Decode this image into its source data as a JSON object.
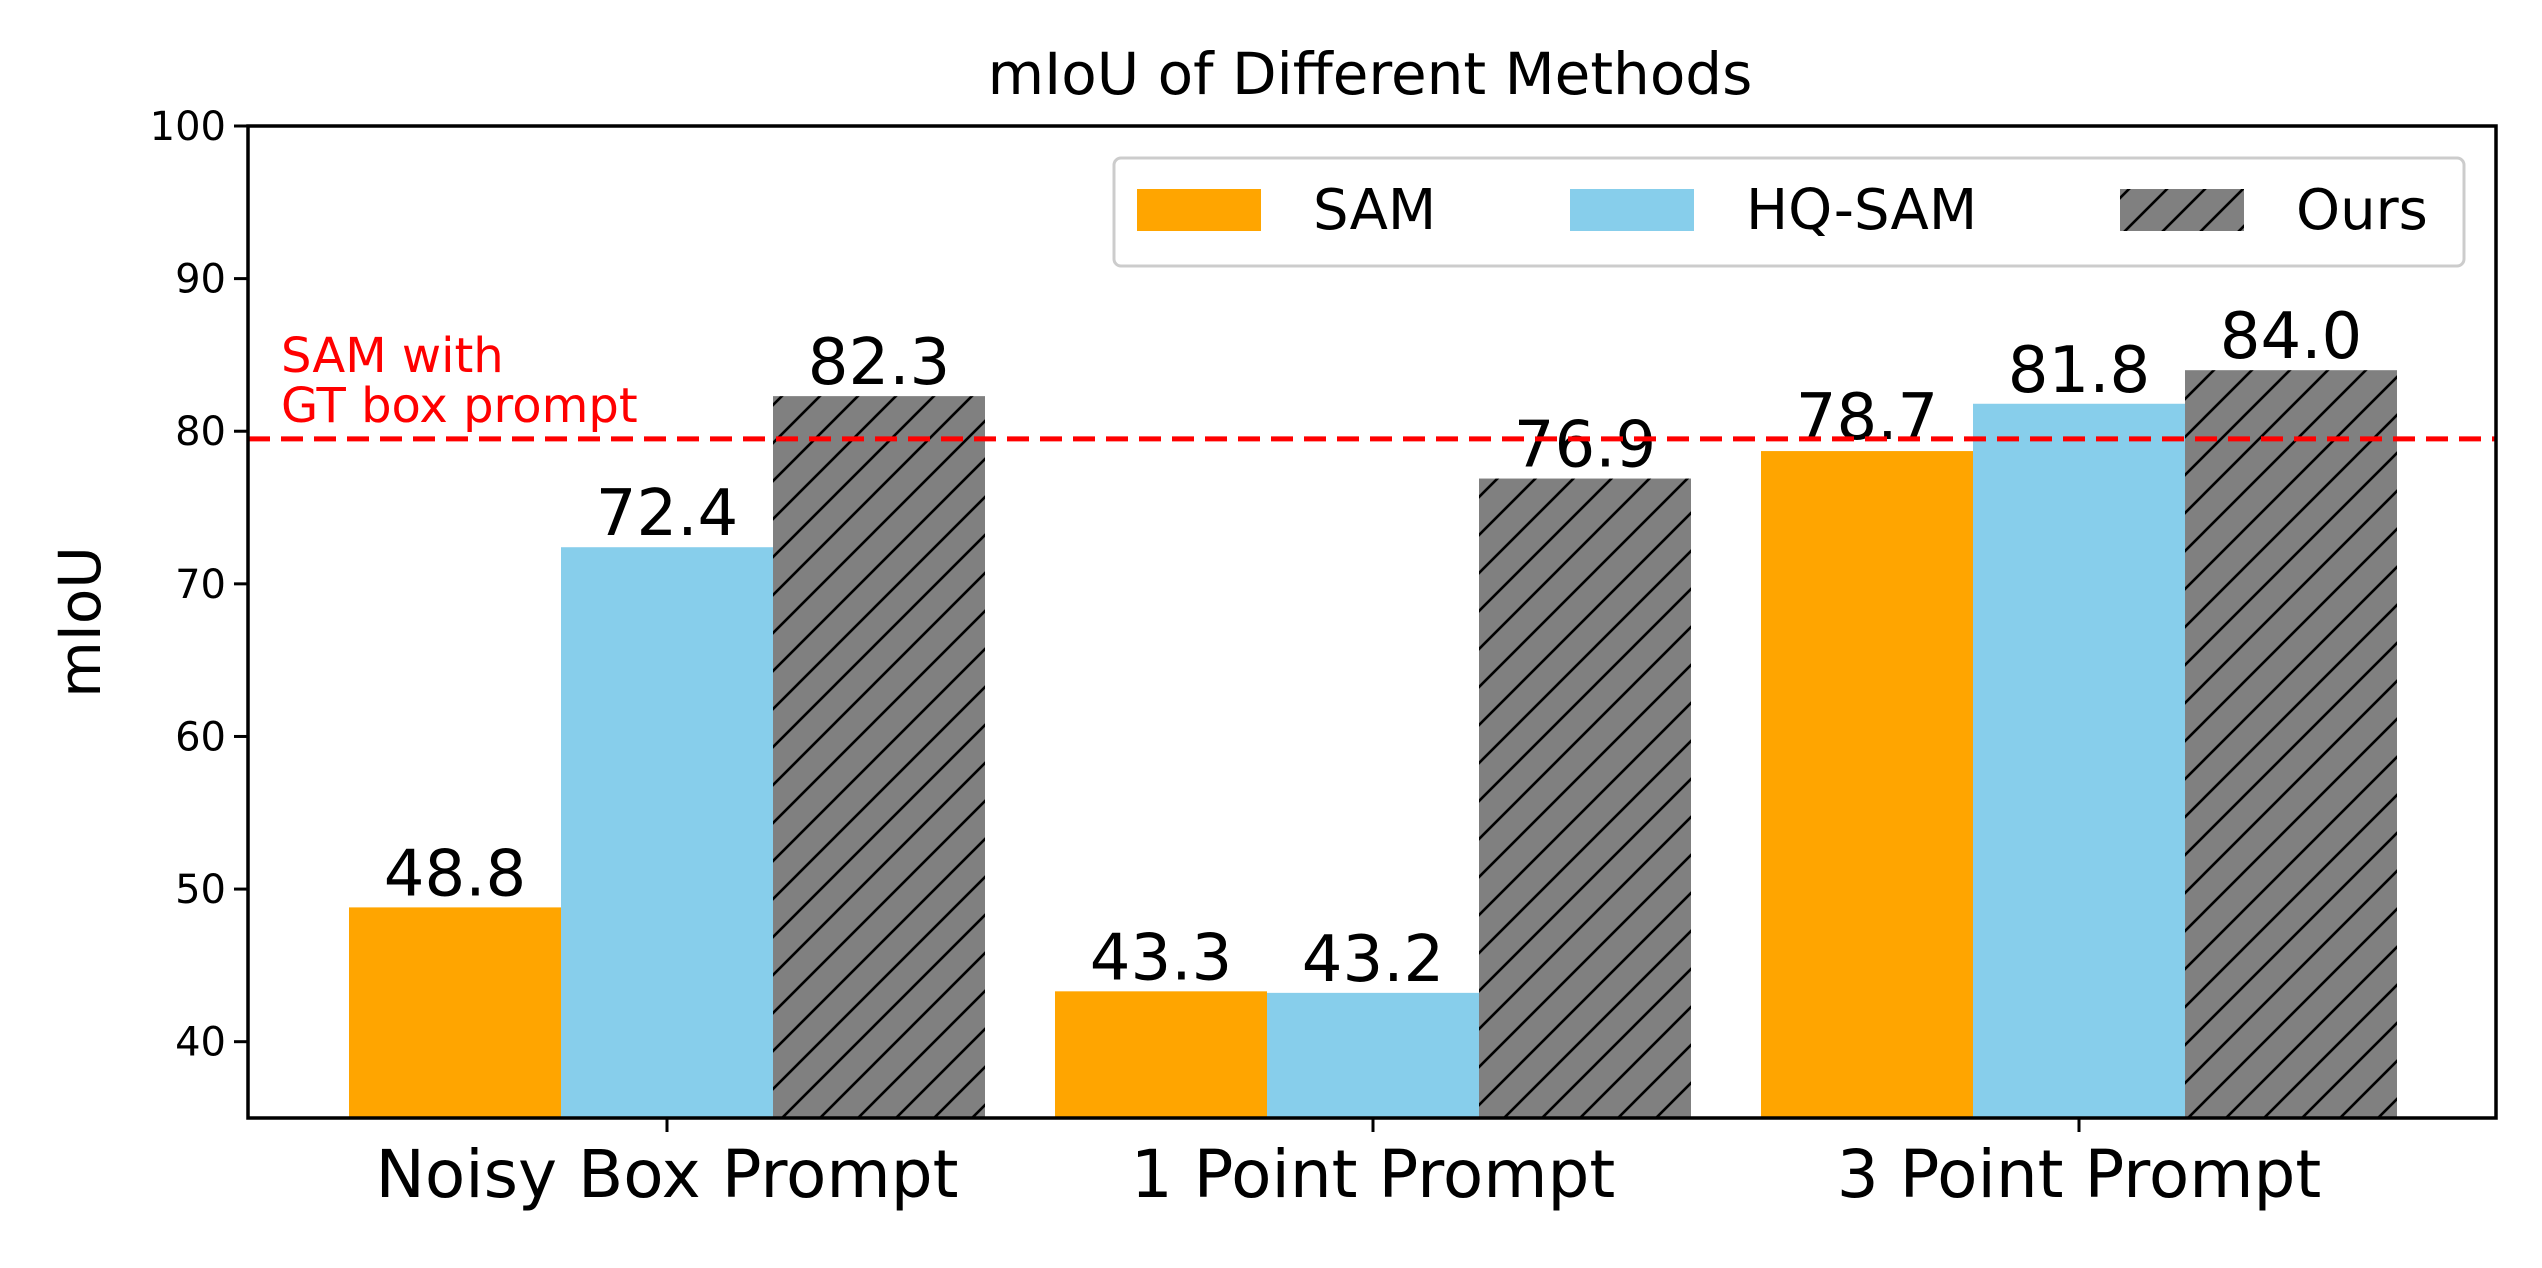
{
  "chart_data": {
    "type": "bar",
    "title": "mIoU of Different Methods",
    "xlabel": "",
    "ylabel": "mIoU",
    "ylim": [
      35,
      100
    ],
    "yticks": [
      40,
      50,
      60,
      70,
      80,
      90,
      100
    ],
    "grid": false,
    "legend_position": "top-right",
    "categories": [
      "Noisy Box Prompt",
      "1 Point Prompt",
      "3 Point Prompt"
    ],
    "series": [
      {
        "name": "SAM",
        "values": [
          48.8,
          43.3,
          78.7
        ],
        "labels": [
          "48.8",
          "43.3",
          "78.7"
        ],
        "color": "#FFA500",
        "pattern": "none"
      },
      {
        "name": "HQ-SAM",
        "values": [
          72.4,
          43.2,
          81.8
        ],
        "labels": [
          "72.4",
          "43.2",
          "81.8"
        ],
        "color": "#87CEEB",
        "pattern": "none"
      },
      {
        "name": "Ours",
        "values": [
          82.3,
          76.9,
          84.0
        ],
        "labels": [
          "82.3",
          "76.9",
          "84.0"
        ],
        "color": "#808080",
        "pattern": "hatch"
      }
    ],
    "reference_line": {
      "value": 79.5,
      "color": "#FF0000",
      "style": "dashed",
      "label_lines": [
        "SAM with",
        "GT box prompt"
      ]
    }
  }
}
